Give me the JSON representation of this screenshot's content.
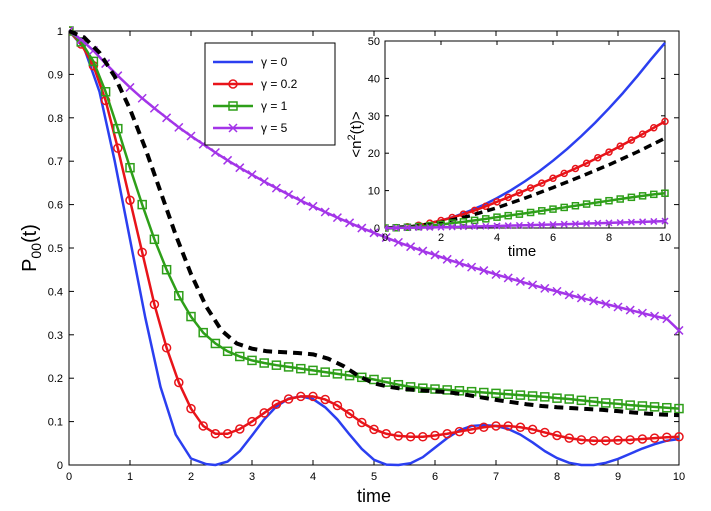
{
  "colors": {
    "blue": "#2b3ff0",
    "red": "#e8141a",
    "green": "#2e9f19",
    "purple": "#a335e8",
    "black": "#000000"
  },
  "chart_data": [
    {
      "id": "main",
      "type": "line",
      "xlabel": "time",
      "ylabel_main": "P",
      "ylabel_sub": "00",
      "ylabel_tail": "(t)",
      "xlim": [
        0,
        10
      ],
      "ylim": [
        0,
        1
      ],
      "xticks": [
        0,
        1,
        2,
        3,
        4,
        5,
        6,
        7,
        8,
        9,
        10
      ],
      "yticks": [
        0,
        0.1,
        0.2,
        0.3,
        0.4,
        0.5,
        0.6,
        0.7,
        0.8,
        0.9,
        1
      ],
      "ytick_labels": [
        "0",
        "0.1",
        "0.2",
        "0.3",
        "0.4",
        "0.5",
        "0.6",
        "0.7",
        "0.8",
        "0.9",
        "1"
      ],
      "legend_position": "top-center",
      "legend": [
        {
          "label": "γ = 0",
          "color": "#2b3ff0",
          "marker": "none"
        },
        {
          "label": "γ = 0.2",
          "color": "#e8141a",
          "marker": "circle"
        },
        {
          "label": "γ = 1",
          "color": "#2e9f19",
          "marker": "square"
        },
        {
          "label": "γ = 5",
          "color": "#a335e8",
          "marker": "x"
        }
      ],
      "series": [
        {
          "name": "γ = 0",
          "color": "#2b3ff0",
          "marker": "none",
          "dashed": false,
          "x": [
            0,
            0.25,
            0.5,
            0.75,
            1,
            1.25,
            1.5,
            1.75,
            2,
            2.25,
            2.4,
            2.6,
            2.8,
            3,
            3.2,
            3.4,
            3.6,
            3.8,
            4,
            4.2,
            4.4,
            4.6,
            4.8,
            5,
            5.2,
            5.4,
            5.6,
            5.8,
            6,
            6.2,
            6.4,
            6.6,
            6.8,
            7,
            7.2,
            7.4,
            7.6,
            7.8,
            8,
            8.2,
            8.4,
            8.6,
            8.8,
            9,
            9.2,
            9.4,
            9.6,
            9.8,
            10
          ],
          "y": [
            1,
            0.96,
            0.86,
            0.7,
            0.52,
            0.34,
            0.18,
            0.07,
            0.015,
            0.002,
            0.0,
            0.008,
            0.032,
            0.068,
            0.105,
            0.135,
            0.153,
            0.158,
            0.152,
            0.133,
            0.105,
            0.07,
            0.037,
            0.012,
            0.001,
            0.0,
            0.004,
            0.018,
            0.04,
            0.062,
            0.08,
            0.09,
            0.092,
            0.09,
            0.083,
            0.07,
            0.052,
            0.032,
            0.016,
            0.005,
            0.0,
            0.0,
            0.005,
            0.014,
            0.026,
            0.038,
            0.048,
            0.056,
            0.06
          ]
        },
        {
          "name": "γ = 0.2",
          "color": "#e8141a",
          "marker": "circle",
          "dashed": false,
          "x": [
            0,
            0.2,
            0.4,
            0.6,
            0.8,
            1,
            1.2,
            1.4,
            1.6,
            1.8,
            2,
            2.2,
            2.4,
            2.6,
            2.8,
            3,
            3.2,
            3.4,
            3.6,
            3.8,
            4,
            4.2,
            4.4,
            4.6,
            4.8,
            5,
            5.2,
            5.4,
            5.6,
            5.8,
            6,
            6.2,
            6.4,
            6.6,
            6.8,
            7,
            7.2,
            7.4,
            7.6,
            7.8,
            8,
            8.2,
            8.4,
            8.6,
            8.8,
            9,
            9.2,
            9.4,
            9.6,
            9.8,
            10
          ],
          "y": [
            1,
            0.97,
            0.92,
            0.84,
            0.73,
            0.61,
            0.49,
            0.37,
            0.27,
            0.19,
            0.13,
            0.09,
            0.072,
            0.072,
            0.083,
            0.1,
            0.12,
            0.14,
            0.152,
            0.158,
            0.158,
            0.151,
            0.137,
            0.118,
            0.098,
            0.082,
            0.072,
            0.067,
            0.065,
            0.065,
            0.068,
            0.072,
            0.077,
            0.082,
            0.087,
            0.09,
            0.09,
            0.087,
            0.082,
            0.075,
            0.068,
            0.062,
            0.058,
            0.056,
            0.056,
            0.057,
            0.058,
            0.06,
            0.062,
            0.064,
            0.065
          ]
        },
        {
          "name": "γ = 1",
          "color": "#2e9f19",
          "marker": "square",
          "dashed": false,
          "x": [
            0,
            0.2,
            0.4,
            0.6,
            0.8,
            1,
            1.2,
            1.4,
            1.6,
            1.8,
            2,
            2.2,
            2.4,
            2.6,
            2.8,
            3,
            3.2,
            3.4,
            3.6,
            3.8,
            4,
            4.2,
            4.4,
            4.6,
            4.8,
            5,
            5.2,
            5.4,
            5.6,
            5.8,
            6,
            6.2,
            6.4,
            6.6,
            6.8,
            7,
            7.2,
            7.4,
            7.6,
            7.8,
            8,
            8.2,
            8.4,
            8.6,
            8.8,
            9,
            9.2,
            9.4,
            9.6,
            9.8,
            10
          ],
          "y": [
            1,
            0.975,
            0.93,
            0.86,
            0.775,
            0.685,
            0.6,
            0.52,
            0.45,
            0.39,
            0.342,
            0.305,
            0.28,
            0.262,
            0.25,
            0.241,
            0.235,
            0.23,
            0.226,
            0.222,
            0.218,
            0.214,
            0.21,
            0.206,
            0.202,
            0.197,
            0.191,
            0.185,
            0.18,
            0.177,
            0.175,
            0.173,
            0.171,
            0.169,
            0.167,
            0.165,
            0.163,
            0.161,
            0.159,
            0.157,
            0.154,
            0.152,
            0.149,
            0.146,
            0.143,
            0.141,
            0.138,
            0.136,
            0.134,
            0.132,
            0.13
          ]
        },
        {
          "name": "γ = 5",
          "color": "#a335e8",
          "marker": "x",
          "dashed": false,
          "x": [
            0,
            0.2,
            0.4,
            0.6,
            0.8,
            1,
            1.2,
            1.4,
            1.6,
            1.8,
            2,
            2.2,
            2.4,
            2.6,
            2.8,
            3,
            3.2,
            3.4,
            3.6,
            3.8,
            4,
            4.2,
            4.4,
            4.6,
            4.8,
            5,
            5.2,
            5.4,
            5.6,
            5.8,
            6,
            6.2,
            6.4,
            6.6,
            6.8,
            7,
            7.2,
            7.4,
            7.6,
            7.8,
            8,
            8.2,
            8.4,
            8.6,
            8.8,
            9,
            9.2,
            9.4,
            9.6,
            9.8,
            10
          ],
          "y": [
            1,
            0.98,
            0.955,
            0.925,
            0.897,
            0.87,
            0.845,
            0.822,
            0.8,
            0.778,
            0.758,
            0.739,
            0.72,
            0.702,
            0.685,
            0.669,
            0.653,
            0.638,
            0.623,
            0.609,
            0.596,
            0.583,
            0.57,
            0.558,
            0.546,
            0.535,
            0.524,
            0.513,
            0.503,
            0.493,
            0.484,
            0.474,
            0.465,
            0.456,
            0.448,
            0.439,
            0.431,
            0.423,
            0.415,
            0.407,
            0.4,
            0.392,
            0.385,
            0.378,
            0.371,
            0.364,
            0.357,
            0.35,
            0.343,
            0.337,
            0.31
          ]
        },
        {
          "name": "dashed",
          "color": "#000000",
          "marker": "none",
          "dashed": true,
          "x": [
            0,
            0.25,
            0.5,
            0.75,
            1,
            1.25,
            1.5,
            1.75,
            2,
            2.25,
            2.5,
            2.75,
            3,
            3.25,
            3.5,
            3.75,
            4,
            4.25,
            4.5,
            4.75,
            5,
            5.25,
            5.5,
            5.75,
            6,
            6.25,
            6.5,
            6.75,
            7,
            7.25,
            7.5,
            7.75,
            8,
            8.25,
            8.5,
            8.75,
            9,
            9.25,
            9.5,
            9.75,
            10
          ],
          "y": [
            1,
            0.985,
            0.95,
            0.895,
            0.82,
            0.73,
            0.63,
            0.53,
            0.44,
            0.365,
            0.31,
            0.28,
            0.268,
            0.262,
            0.26,
            0.258,
            0.255,
            0.245,
            0.228,
            0.205,
            0.188,
            0.18,
            0.175,
            0.172,
            0.17,
            0.167,
            0.162,
            0.156,
            0.15,
            0.145,
            0.14,
            0.136,
            0.133,
            0.131,
            0.129,
            0.127,
            0.124,
            0.121,
            0.118,
            0.116,
            0.115
          ]
        }
      ]
    },
    {
      "id": "inset",
      "type": "line",
      "xlabel": "time",
      "ylabel_pre": "<n",
      "ylabel_sup": "2",
      "ylabel_post": "(t)>",
      "xlim": [
        0,
        10
      ],
      "ylim": [
        0,
        50
      ],
      "xticks": [
        0,
        2,
        4,
        6,
        8,
        10
      ],
      "yticks": [
        0,
        10,
        20,
        30,
        40,
        50
      ],
      "series": [
        {
          "name": "γ = 0",
          "color": "#2b3ff0",
          "marker": "none",
          "dashed": false,
          "x": [
            0,
            0.5,
            1,
            1.5,
            2,
            2.5,
            3,
            3.5,
            4,
            4.5,
            5,
            5.5,
            6,
            6.5,
            7,
            7.5,
            8,
            8.5,
            9,
            9.5,
            10
          ],
          "y": [
            0,
            0.12,
            0.5,
            1.1,
            2.0,
            3.1,
            4.5,
            6.1,
            8.0,
            10.1,
            12.5,
            15.1,
            18.0,
            21.1,
            24.5,
            28.1,
            32.0,
            36.1,
            40.5,
            45.1,
            49.5
          ]
        },
        {
          "name": "γ = 0.2",
          "color": "#e8141a",
          "marker": "circle",
          "dashed": false,
          "x": [
            0,
            0.4,
            0.8,
            1.2,
            1.6,
            2,
            2.4,
            2.8,
            3.2,
            3.6,
            4,
            4.4,
            4.8,
            5.2,
            5.6,
            6,
            6.4,
            6.8,
            7.2,
            7.6,
            8,
            8.4,
            8.8,
            9.2,
            9.6,
            10
          ],
          "y": [
            0,
            0.1,
            0.35,
            0.75,
            1.3,
            2.0,
            2.8,
            3.7,
            4.7,
            5.8,
            7.0,
            8.2,
            9.4,
            10.7,
            12.0,
            13.3,
            14.6,
            15.9,
            17.3,
            18.8,
            20.3,
            21.9,
            23.5,
            25.1,
            26.8,
            28.5
          ]
        },
        {
          "name": "dashed",
          "color": "#000000",
          "marker": "none",
          "dashed": true,
          "x": [
            0,
            1,
            2,
            3,
            4,
            5,
            6,
            7,
            8,
            9,
            10
          ],
          "y": [
            0,
            0.4,
            1.5,
            3.2,
            5.4,
            8.0,
            10.8,
            13.8,
            16.9,
            20.3,
            24.0
          ]
        },
        {
          "name": "γ = 1",
          "color": "#2e9f19",
          "marker": "square",
          "dashed": false,
          "x": [
            0,
            0.4,
            0.8,
            1.2,
            1.6,
            2,
            2.4,
            2.8,
            3.2,
            3.6,
            4,
            4.4,
            4.8,
            5.2,
            5.6,
            6,
            6.4,
            6.8,
            7.2,
            7.6,
            8,
            8.4,
            8.8,
            9.2,
            9.6,
            10
          ],
          "y": [
            0,
            0.06,
            0.2,
            0.4,
            0.65,
            0.95,
            1.3,
            1.65,
            2.05,
            2.45,
            2.9,
            3.3,
            3.7,
            4.15,
            4.6,
            5.05,
            5.5,
            5.95,
            6.4,
            6.85,
            7.3,
            7.75,
            8.2,
            8.6,
            9.0,
            9.3
          ]
        },
        {
          "name": "γ = 5",
          "color": "#a335e8",
          "marker": "x",
          "dashed": false,
          "x": [
            0,
            0.4,
            0.8,
            1.2,
            1.6,
            2,
            2.4,
            2.8,
            3.2,
            3.6,
            4,
            4.4,
            4.8,
            5.2,
            5.6,
            6,
            6.4,
            6.8,
            7.2,
            7.6,
            8,
            8.4,
            8.8,
            9.2,
            9.6,
            10
          ],
          "y": [
            0,
            0.02,
            0.06,
            0.1,
            0.15,
            0.2,
            0.26,
            0.33,
            0.4,
            0.47,
            0.55,
            0.62,
            0.7,
            0.78,
            0.86,
            0.94,
            1.02,
            1.1,
            1.19,
            1.28,
            1.37,
            1.46,
            1.55,
            1.65,
            1.75,
            1.85
          ]
        }
      ]
    }
  ]
}
